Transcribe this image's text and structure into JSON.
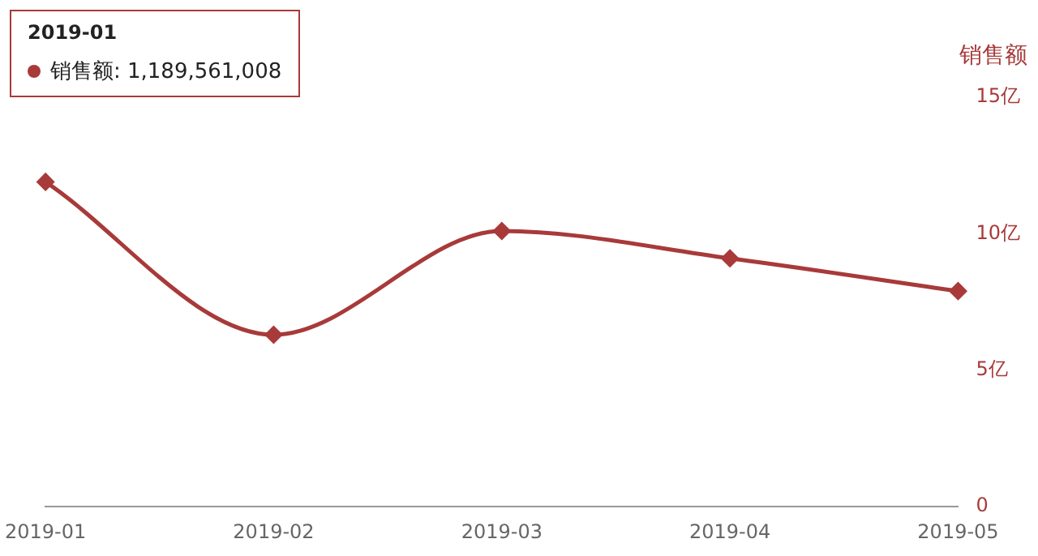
{
  "chart_data": {
    "type": "line",
    "ylabel": "销售额",
    "categories": [
      "2019-01",
      "2019-02",
      "2019-03",
      "2019-04",
      "2019-05"
    ],
    "series": [
      {
        "color": "#a83a3a",
        "values": [
          11.9,
          6.3,
          10.1,
          9.1,
          7.9
        ]
      }
    ],
    "ylim": [
      0,
      15
    ],
    "yticks": [
      0,
      {
        "value": 5,
        "label": "5亿"
      },
      {
        "value": 10,
        "label": "10亿"
      },
      {
        "value": 15,
        "label": "15亿"
      }
    ],
    "grid": false,
    "legend": false,
    "marker": "diamond",
    "line_style": "solid",
    "annotations": [
      "2019-01\n销售额: 1,189,561,008"
    ]
  }
}
